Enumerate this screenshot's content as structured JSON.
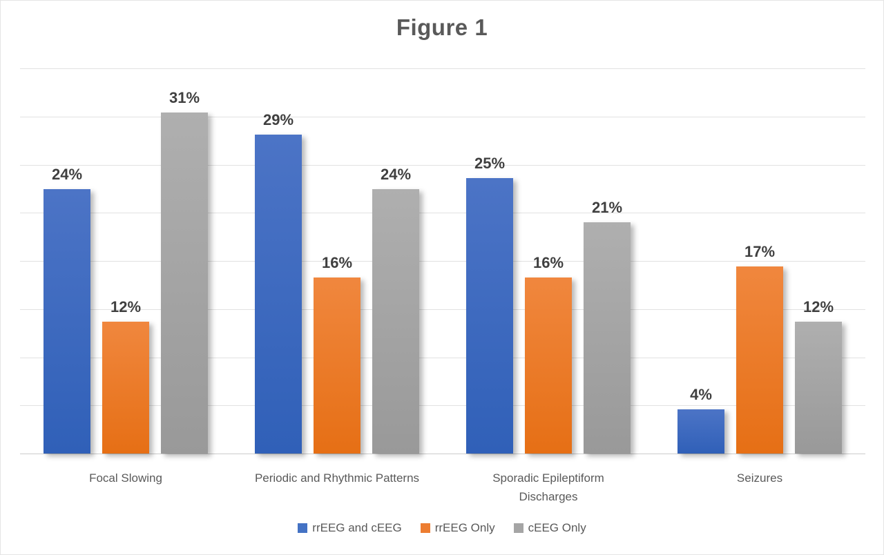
{
  "title": "Figure 1",
  "chart_data": {
    "type": "bar",
    "title": "Figure 1",
    "categories": [
      "Focal Slowing",
      "Periodic and Rhythmic Patterns",
      "Sporadic Epileptiform\nDischarges",
      "Seizures"
    ],
    "series": [
      {
        "name": "rrEEG and cEEG",
        "values": [
          24,
          29,
          25,
          4
        ],
        "labels": [
          "24%",
          "29%",
          "25%",
          "4%"
        ],
        "legend_color": "#4472C4",
        "gradient_top": "#4C74C6",
        "gradient_bottom": "#3060B8"
      },
      {
        "name": "rrEEG Only",
        "values": [
          12,
          16,
          16,
          17
        ],
        "labels": [
          "12%",
          "16%",
          "16%",
          "17%"
        ],
        "legend_color": "#ED7D31",
        "gradient_top": "#F0873E",
        "gradient_bottom": "#E66F15"
      },
      {
        "name": "cEEG Only",
        "values": [
          31,
          24,
          21,
          12
        ],
        "labels": [
          "31%",
          "24%",
          "21%",
          "12%"
        ],
        "legend_color": "#A5A5A5",
        "gradient_top": "#AFAFAF",
        "gradient_bottom": "#999999"
      }
    ],
    "xlabel": "",
    "ylabel": "",
    "ylim": [
      0,
      35
    ],
    "y_axis_labels_visible": false,
    "gridline_intervals": 8,
    "grid": true,
    "data_labels": true,
    "legend_position": "bottom",
    "colors": {
      "title_text": "#595959",
      "axis_text": "#595959",
      "data_label_text": "#3F3F3F",
      "gridline": "#E1E1E1"
    }
  }
}
